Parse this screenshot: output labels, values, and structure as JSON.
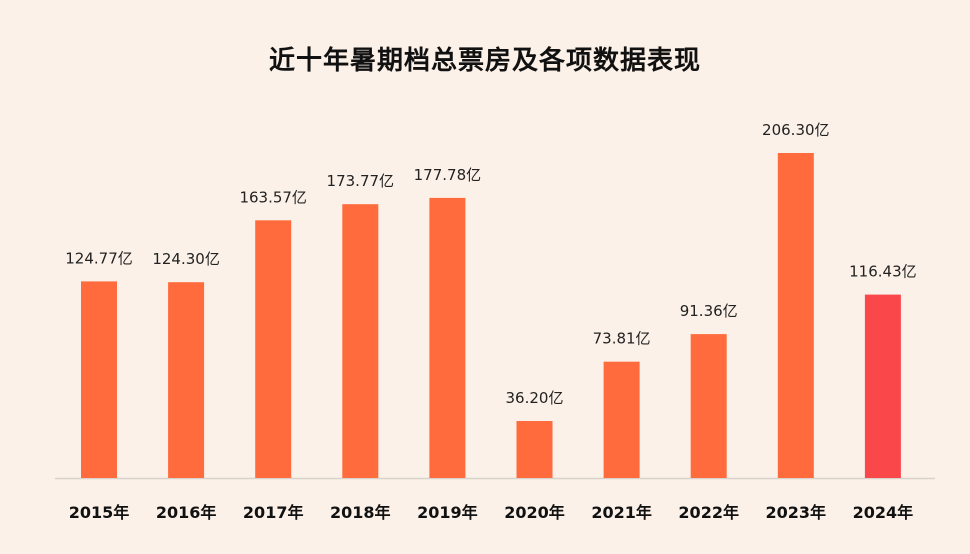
{
  "chart_data": {
    "type": "bar",
    "title": "近十年暑期档总票房及各项数据表现",
    "xlabel": "",
    "ylabel": "",
    "unit": "亿",
    "categories": [
      "2015年",
      "2016年",
      "2017年",
      "2018年",
      "2019年",
      "2020年",
      "2021年",
      "2022年",
      "2023年",
      "2024年"
    ],
    "values": [
      124.77,
      124.3,
      163.57,
      173.77,
      177.78,
      36.2,
      73.81,
      91.36,
      206.3,
      116.43
    ],
    "data_labels": [
      "124.77亿",
      "124.30亿",
      "163.57亿",
      "173.77亿",
      "177.78亿",
      "36.20亿",
      "73.81亿",
      "91.36亿",
      "206.30亿",
      "116.43亿"
    ],
    "ylim": [
      0,
      206.3
    ],
    "grid": false,
    "legend": "none",
    "colors": {
      "bar": "#ff6b3d",
      "highlight_bar": "#f9474a",
      "axis": "#d9d2cc",
      "background": "#fbf1e8"
    },
    "highlight_index": 9
  }
}
